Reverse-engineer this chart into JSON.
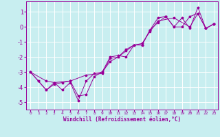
{
  "xlabel": "Windchill (Refroidissement éolien,°C)",
  "background_color": "#c8eef0",
  "grid_color": "#ffffff",
  "line_color": "#990099",
  "xlim": [
    -0.5,
    23.5
  ],
  "ylim": [
    -5.5,
    1.7
  ],
  "yticks": [
    1,
    0,
    -1,
    -2,
    -3,
    -4,
    -5
  ],
  "xticks": [
    0,
    1,
    2,
    3,
    4,
    5,
    6,
    7,
    8,
    9,
    10,
    11,
    12,
    13,
    14,
    15,
    16,
    17,
    18,
    19,
    20,
    21,
    22,
    23
  ],
  "series1": [
    [
      0,
      -3.0
    ],
    [
      1,
      -3.6
    ],
    [
      2,
      -4.2
    ],
    [
      3,
      -3.7
    ],
    [
      4,
      -4.2
    ],
    [
      5,
      -3.7
    ],
    [
      6,
      -4.9
    ],
    [
      7,
      -3.6
    ],
    [
      8,
      -3.1
    ],
    [
      9,
      -3.0
    ],
    [
      10,
      -2.0
    ],
    [
      11,
      -1.9
    ],
    [
      12,
      -2.0
    ],
    [
      13,
      -1.2
    ],
    [
      14,
      -1.2
    ],
    [
      15,
      -0.2
    ],
    [
      16,
      0.6
    ],
    [
      17,
      0.7
    ],
    [
      18,
      0.0
    ],
    [
      19,
      0.6
    ],
    [
      20,
      -0.1
    ],
    [
      21,
      1.3
    ],
    [
      22,
      -0.1
    ],
    [
      23,
      0.2
    ]
  ],
  "series2": [
    [
      0,
      -3.0
    ],
    [
      1,
      -3.6
    ],
    [
      2,
      -4.2
    ],
    [
      3,
      -3.8
    ],
    [
      4,
      -3.7
    ],
    [
      5,
      -3.6
    ],
    [
      6,
      -4.6
    ],
    [
      7,
      -4.5
    ],
    [
      8,
      -3.3
    ],
    [
      9,
      -3.0
    ],
    [
      10,
      -2.3
    ],
    [
      11,
      -2.0
    ],
    [
      12,
      -1.5
    ],
    [
      13,
      -1.2
    ],
    [
      14,
      -1.2
    ],
    [
      15,
      -0.2
    ],
    [
      16,
      0.3
    ],
    [
      17,
      0.7
    ],
    [
      18,
      0.0
    ],
    [
      19,
      -0.0
    ],
    [
      20,
      0.7
    ],
    [
      21,
      0.9
    ],
    [
      22,
      -0.1
    ],
    [
      23,
      0.2
    ]
  ],
  "series3": [
    [
      0,
      -3.0
    ],
    [
      2,
      -3.6
    ],
    [
      3,
      -3.7
    ],
    [
      5,
      -3.6
    ],
    [
      7,
      -3.2
    ],
    [
      9,
      -3.1
    ],
    [
      10,
      -2.1
    ],
    [
      11,
      -2.0
    ],
    [
      12,
      -1.6
    ],
    [
      13,
      -1.2
    ],
    [
      14,
      -1.1
    ],
    [
      15,
      -0.3
    ],
    [
      16,
      0.4
    ],
    [
      18,
      0.6
    ],
    [
      20,
      0.0
    ],
    [
      21,
      0.9
    ],
    [
      22,
      -0.1
    ],
    [
      23,
      0.2
    ]
  ]
}
